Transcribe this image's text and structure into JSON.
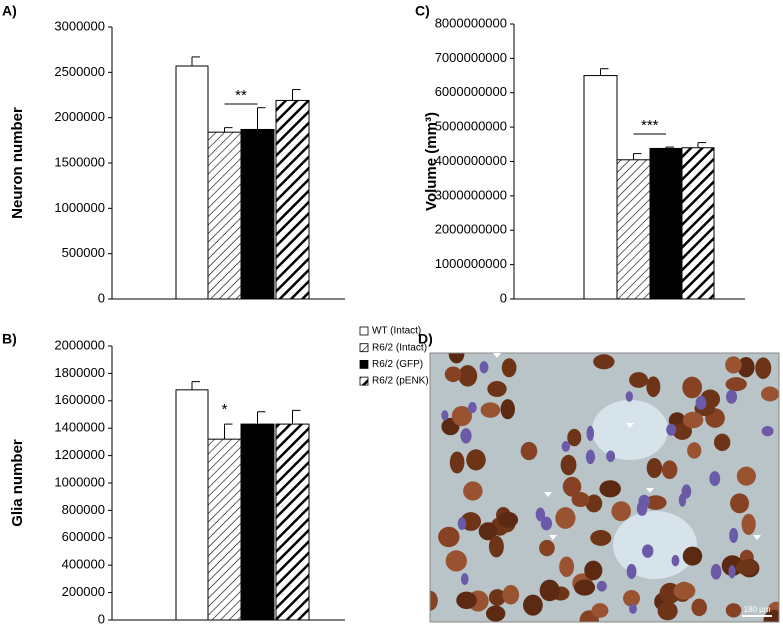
{
  "chart_data": [
    {
      "type": "bar",
      "panel": "A)",
      "y_label": "Neuron number",
      "categories": [
        null
      ],
      "series": [
        {
          "color": "#ffffff",
          "fill": "solid",
          "values": [
            2570000
          ],
          "errors": [
            100000
          ]
        },
        {
          "color": "#000000",
          "fill": "hatch",
          "values": [
            1840000
          ],
          "errors": [
            50000
          ]
        },
        {
          "color": "#000000",
          "fill": "solid",
          "values": [
            1870000
          ],
          "errors": [
            240000
          ]
        },
        {
          "color": "#000000",
          "fill": "bold-hatch",
          "values": [
            2190000
          ],
          "errors": [
            120000
          ]
        }
      ],
      "ylim": [
        0,
        3000000
      ],
      "yticks": [
        0,
        500000,
        1000000,
        1500000,
        2000000,
        2500000,
        3000000
      ],
      "annotations": [
        {
          "text": "**",
          "bracket": true
        }
      ]
    },
    {
      "type": "bar",
      "panel": "B)",
      "y_label": "Glia number",
      "categories": [
        null
      ],
      "series": [
        {
          "name": "WT (Intact)",
          "color": "#ffffff",
          "fill": "solid",
          "values": [
            1680000
          ],
          "errors": [
            60000
          ]
        },
        {
          "name": "R6/2 (Intact)",
          "color": "#000000",
          "fill": "hatch",
          "values": [
            1320000
          ],
          "errors": [
            110000
          ]
        },
        {
          "name": "R6/2 (GFP)",
          "color": "#000000",
          "fill": "solid",
          "values": [
            1430000
          ],
          "errors": [
            90000
          ]
        },
        {
          "name": "R6/2 (pENK)",
          "color": "#000000",
          "fill": "bold-hatch",
          "values": [
            1430000
          ],
          "errors": [
            100000
          ]
        }
      ],
      "ylim": [
        0,
        2000000
      ],
      "yticks": [
        0,
        200000,
        400000,
        600000,
        800000,
        1000000,
        1200000,
        1400000,
        1600000,
        1800000,
        2000000
      ],
      "legend": "right",
      "annotations": [
        {
          "text": "*",
          "bracket": false
        }
      ]
    },
    {
      "type": "bar",
      "panel": "C)",
      "y_label": "Volume (mm³)",
      "categories": [
        null
      ],
      "series": [
        {
          "color": "#ffffff",
          "fill": "solid",
          "values": [
            6500000000
          ],
          "errors": [
            200000000
          ]
        },
        {
          "color": "#000000",
          "fill": "hatch",
          "values": [
            4050000000
          ],
          "errors": [
            180000000
          ]
        },
        {
          "color": "#000000",
          "fill": "solid",
          "values": [
            4380000000
          ],
          "errors": [
            40000000
          ]
        },
        {
          "color": "#000000",
          "fill": "bold-hatch",
          "values": [
            4400000000
          ],
          "errors": [
            150000000
          ]
        }
      ],
      "ylim": [
        0,
        8000000000
      ],
      "yticks": [
        0,
        1000000000,
        2000000000,
        3000000000,
        4000000000,
        5000000000,
        6000000000,
        7000000000,
        8000000000
      ],
      "annotations": [
        {
          "text": "***",
          "bracket": true
        }
      ]
    }
  ],
  "micrograph": {
    "panel": "D)",
    "scale_bar": "180 µm"
  }
}
